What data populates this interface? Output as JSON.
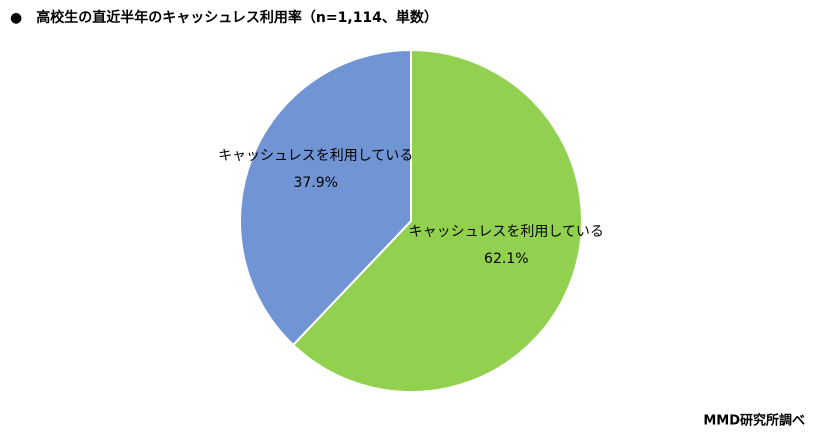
{
  "chart_data": {
    "type": "pie",
    "title": "●　高校生の直近半年のキャッシュレス利用率（n=1,114、単数）",
    "categories": [
      "キャッシュレスを利用している",
      "キャッシュレスを利用している"
    ],
    "values": [
      62.1,
      37.9
    ],
    "value_labels": [
      "62.1%",
      "37.9%"
    ],
    "colors": [
      "#92d050",
      "#7094d4"
    ],
    "source": "MMD研究所調べ"
  }
}
